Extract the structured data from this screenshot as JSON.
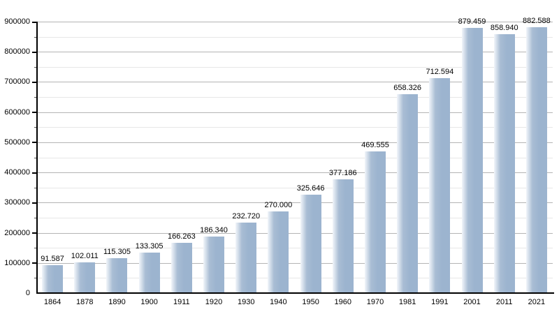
{
  "chart_data": {
    "type": "bar",
    "title": "",
    "xlabel": "",
    "ylabel": "",
    "categories": [
      "1864",
      "1878",
      "1890",
      "1900",
      "1911",
      "1920",
      "1930",
      "1940",
      "1950",
      "1960",
      "1970",
      "1981",
      "1991",
      "2001",
      "2011",
      "2021"
    ],
    "values": [
      91587,
      102011,
      115305,
      133305,
      166263,
      186340,
      232720,
      270000,
      325646,
      377186,
      469555,
      658326,
      712594,
      879459,
      858940,
      882588
    ],
    "value_labels": [
      "91.587",
      "102.011",
      "115.305",
      "133.305",
      "166.263",
      "186.340",
      "232.720",
      "270.000",
      "325.646",
      "377.186",
      "469.555",
      "658.326",
      "712.594",
      "879.459",
      "858.940",
      "882.588"
    ],
    "ylim": [
      0,
      900000
    ],
    "ytick_major_step": 100000,
    "ytick_minor_step": 50000,
    "ytick_labels": [
      "0",
      "100000",
      "200000",
      "300000",
      "400000",
      "500000",
      "600000",
      "700000",
      "800000",
      "900000"
    ],
    "grid": true,
    "legend_position": "none",
    "colors": {
      "bar": "#9cb4cf",
      "bar_mid": "#a9bdd4",
      "bar_highlight": "#f2f6fa",
      "grid_major": "#b4b4b4",
      "grid_minor": "#e7e7e7",
      "axis": "#000000",
      "text": "#000000",
      "background": "#ffffff"
    }
  }
}
